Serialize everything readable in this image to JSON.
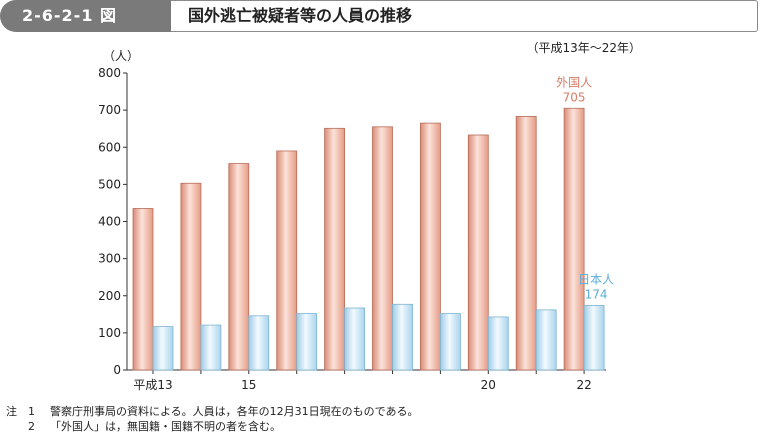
{
  "header": {
    "figure_number": "2-6-2-1 図",
    "title": "国外逃亡被疑者等の人員の推移"
  },
  "chart_data": {
    "type": "bar",
    "unit_label": "（人）",
    "period_note": "（平成13年～22年）",
    "ylim": [
      0,
      800
    ],
    "yticks": [
      "0",
      "100",
      "200",
      "300",
      "400",
      "500",
      "600",
      "700",
      "800"
    ],
    "categories": [
      "平成13",
      "",
      "15",
      "",
      "",
      "",
      "",
      "20",
      "",
      "22"
    ],
    "series": [
      {
        "name": "外国人",
        "color": "#e9a893",
        "values": [
          435,
          503,
          556,
          590,
          651,
          655,
          665,
          633,
          683,
          705
        ],
        "end_label_value": "705"
      },
      {
        "name": "日本人",
        "color": "#bfe0f2",
        "values": [
          117,
          121,
          146,
          152,
          167,
          177,
          152,
          143,
          162,
          174
        ],
        "end_label_value": "174"
      }
    ],
    "colors": {
      "series_label_foreign": "#d97c66",
      "series_label_japanese": "#5aaed8",
      "axis": "#333333"
    }
  },
  "notes": {
    "mark": "注",
    "items": [
      {
        "num": "1",
        "text": "警察庁刑事局の資料による。人員は，各年の12月31日現在のものである。"
      },
      {
        "num": "2",
        "text": "「外国人」は，無国籍・国籍不明の者を含む。"
      }
    ]
  }
}
